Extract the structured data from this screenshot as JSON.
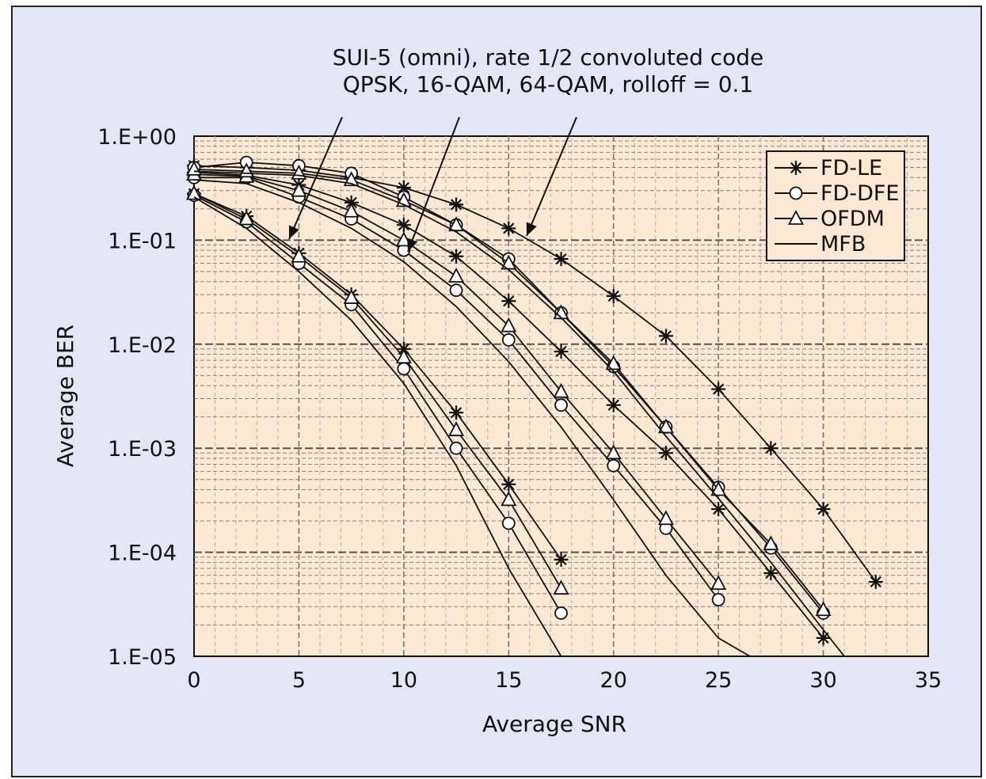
{
  "chart_data": {
    "type": "line",
    "title": "",
    "annotation": [
      "SUI-5 (omni), rate 1/2 convoluted code",
      "QPSK, 16-QAM, 64-QAM, rolloff = 0.1"
    ],
    "xlabel": "Average SNR",
    "ylabel": "Average BER",
    "xlim": [
      0,
      35
    ],
    "ylim": [
      1e-05,
      1
    ],
    "yscale": "log",
    "grid": true,
    "legend_position": "top-right",
    "x_ticks": [
      "0",
      "5",
      "10",
      "15",
      "20",
      "25",
      "30",
      "35"
    ],
    "y_ticks": [
      "1.E+00",
      "1.E-01",
      "1.E-02",
      "1.E-03",
      "1.E-04",
      "1.E-05"
    ],
    "legend": [
      {
        "name": "FD-LE",
        "marker": "star"
      },
      {
        "name": "FD-DFE",
        "marker": "circle"
      },
      {
        "name": "OFDM",
        "marker": "triangle"
      },
      {
        "name": "MFB",
        "marker": "none"
      }
    ],
    "colors": {
      "plot_bg": "#fbe9d3",
      "frame_bg": "#e3e6f4",
      "legend_bg": "#fbe9d3",
      "ink": "#111111"
    },
    "series": [
      {
        "name": "FD-LE",
        "modulation": "QPSK",
        "marker": "star",
        "x": [
          0,
          2.5,
          5,
          7.5,
          10,
          12.5,
          15,
          17.5
        ],
        "y": [
          0.28,
          0.17,
          0.075,
          0.03,
          0.009,
          0.0022,
          0.00045,
          8.5e-05
        ]
      },
      {
        "name": "FD-DFE",
        "modulation": "QPSK",
        "marker": "circle",
        "x": [
          0,
          2.5,
          5,
          7.5,
          10,
          12.5,
          15,
          17.5
        ],
        "y": [
          0.27,
          0.15,
          0.06,
          0.024,
          0.0058,
          0.001,
          0.00019,
          2.6e-05
        ]
      },
      {
        "name": "OFDM",
        "modulation": "QPSK",
        "marker": "triangle",
        "x": [
          0,
          2.5,
          5,
          7.5,
          10,
          12.5,
          15,
          17.5
        ],
        "y": [
          0.28,
          0.16,
          0.07,
          0.028,
          0.0075,
          0.0015,
          0.00032,
          4.5e-05
        ]
      },
      {
        "name": "MFB",
        "modulation": "QPSK",
        "marker": "none",
        "x": [
          0,
          2.5,
          5,
          7.5,
          10,
          12.5,
          15,
          17.5
        ],
        "y": [
          0.26,
          0.13,
          0.05,
          0.017,
          0.0042,
          0.00068,
          7e-05,
          1e-05
        ]
      },
      {
        "name": "FD-LE",
        "modulation": "16-QAM",
        "marker": "star",
        "x": [
          0,
          2.5,
          5,
          7.5,
          10,
          12.5,
          15,
          17.5,
          20,
          22.5,
          25,
          27.5,
          30
        ],
        "y": [
          0.45,
          0.42,
          0.34,
          0.23,
          0.14,
          0.07,
          0.026,
          0.0085,
          0.0026,
          0.0009,
          0.00026,
          6.3e-05,
          1.5e-05
        ]
      },
      {
        "name": "FD-DFE",
        "modulation": "16-QAM",
        "marker": "circle",
        "x": [
          0,
          2.5,
          5,
          7.5,
          10,
          12.5,
          15,
          17.5,
          20,
          22.5,
          25
        ],
        "y": [
          0.4,
          0.4,
          0.26,
          0.16,
          0.08,
          0.033,
          0.011,
          0.0026,
          0.00068,
          0.00017,
          3.5e-05
        ]
      },
      {
        "name": "OFDM",
        "modulation": "16-QAM",
        "marker": "triangle",
        "x": [
          0,
          2.5,
          5,
          7.5,
          10,
          12.5,
          15,
          17.5,
          20,
          22.5,
          25
        ],
        "y": [
          0.43,
          0.41,
          0.3,
          0.19,
          0.1,
          0.045,
          0.015,
          0.0035,
          0.0009,
          0.00021,
          5e-05
        ]
      },
      {
        "name": "MFB",
        "modulation": "16-QAM",
        "marker": "none",
        "x": [
          0,
          2.5,
          5,
          7.5,
          10,
          12.5,
          15,
          17.5,
          20,
          22.5,
          25,
          26.5
        ],
        "y": [
          0.38,
          0.35,
          0.23,
          0.13,
          0.062,
          0.023,
          0.0068,
          0.0016,
          0.00032,
          6e-05,
          1.5e-05,
          1e-05
        ]
      },
      {
        "name": "FD-LE",
        "modulation": "64-QAM",
        "marker": "star",
        "x": [
          0,
          2.5,
          5,
          7.5,
          10,
          12.5,
          15,
          17.5,
          20,
          22.5,
          25,
          27.5,
          30,
          32.5
        ],
        "y": [
          0.52,
          0.5,
          0.47,
          0.4,
          0.32,
          0.22,
          0.13,
          0.066,
          0.029,
          0.012,
          0.0037,
          0.001,
          0.00026,
          5.2e-05
        ]
      },
      {
        "name": "FD-DFE",
        "modulation": "64-QAM",
        "marker": "circle",
        "x": [
          0,
          2.5,
          5,
          7.5,
          10,
          12.5,
          15,
          17.5,
          20,
          22.5,
          25,
          27.5,
          30
        ],
        "y": [
          0.5,
          0.56,
          0.52,
          0.44,
          0.26,
          0.14,
          0.066,
          0.02,
          0.0061,
          0.0016,
          0.00042,
          0.00011,
          2.6e-05
        ]
      },
      {
        "name": "OFDM",
        "modulation": "64-QAM",
        "marker": "triangle",
        "x": [
          0,
          2.5,
          5,
          7.5,
          10,
          12.5,
          15,
          17.5,
          20,
          22.5,
          25,
          27.5,
          30
        ],
        "y": [
          0.48,
          0.46,
          0.44,
          0.38,
          0.24,
          0.14,
          0.06,
          0.02,
          0.0065,
          0.0016,
          0.0004,
          0.00012,
          2.8e-05
        ]
      },
      {
        "name": "MFB",
        "modulation": "64-QAM",
        "marker": "none",
        "x": [
          0,
          2.5,
          5,
          7.5,
          10,
          12.5,
          15,
          17.5,
          20,
          22.5,
          25,
          27.5,
          30,
          31
        ],
        "y": [
          0.46,
          0.44,
          0.42,
          0.35,
          0.22,
          0.12,
          0.052,
          0.018,
          0.0055,
          0.0013,
          0.00033,
          8e-05,
          1.8e-05,
          1e-05
        ]
      }
    ]
  }
}
